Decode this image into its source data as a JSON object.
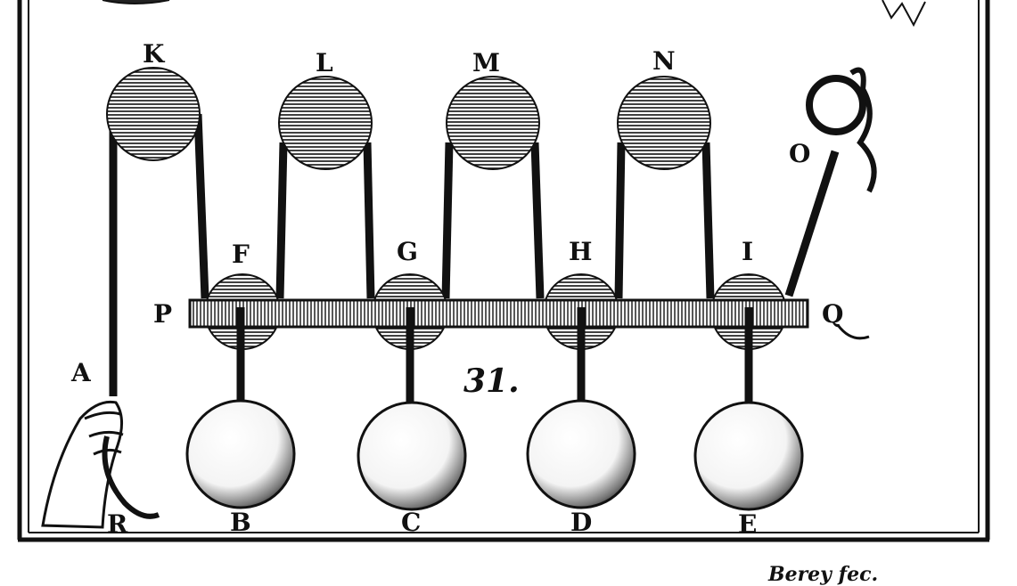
{
  "figure": {
    "number": "31.",
    "signature": "Berey fec.",
    "labels": {
      "K": "K",
      "L": "L",
      "M": "M",
      "N": "N",
      "F": "F",
      "G": "G",
      "H": "H",
      "I": "I",
      "P": "P",
      "Q": "Q",
      "O": "O",
      "A": "A",
      "R": "R",
      "B": "B",
      "C": "C",
      "D": "D",
      "E": "E"
    }
  }
}
